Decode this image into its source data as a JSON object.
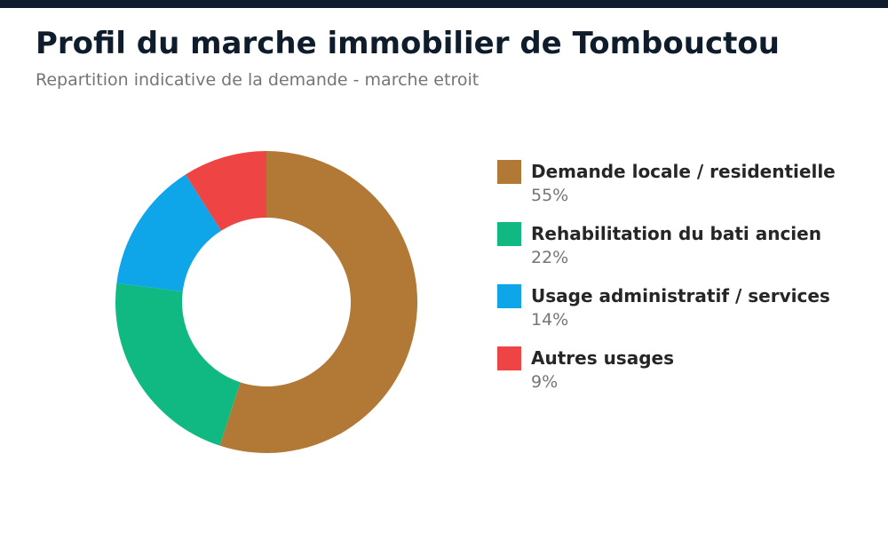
{
  "header": {
    "title": "Profil du marche immobilier de Tombouctou",
    "subtitle": "Repartition indicative de la demande - marche etroit"
  },
  "colors": {
    "top_bar": "#0f1c2c",
    "hole": "#ffffff"
  },
  "chart_data": {
    "type": "pie",
    "variant": "donut",
    "title": "Profil du marche immobilier de Tombouctou",
    "subtitle": "Repartition indicative de la demande - marche etroit",
    "legend_position": "right",
    "slices": [
      {
        "label": "Demande locale / residentielle",
        "value": 55,
        "display": "55%",
        "color": "#b27836"
      },
      {
        "label": "Rehabilitation du bati ancien",
        "value": 22,
        "display": "22%",
        "color": "#10b981"
      },
      {
        "label": "Usage administratif / services",
        "value": 14,
        "display": "14%",
        "color": "#0ea5e9"
      },
      {
        "label": "Autres usages",
        "value": 9,
        "display": "9%",
        "color": "#ef4444"
      }
    ]
  }
}
